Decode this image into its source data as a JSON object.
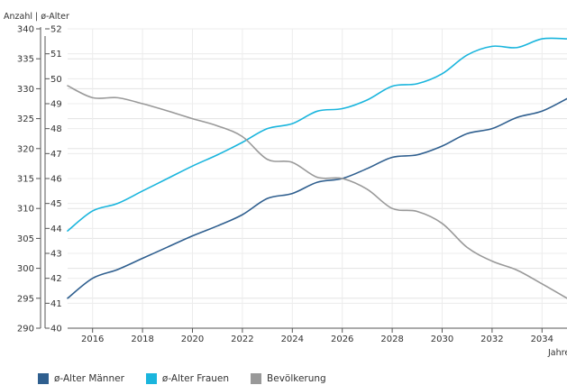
{
  "chart_data": {
    "type": "line",
    "y_axis_title": "Anzahl | ø-Alter",
    "x_axis_title": "Jahre",
    "x": [
      2015,
      2016,
      2017,
      2018,
      2019,
      2020,
      2021,
      2022,
      2023,
      2024,
      2025,
      2026,
      2027,
      2028,
      2029,
      2030,
      2031,
      2032,
      2033,
      2034,
      2035
    ],
    "xticks": [
      "2016",
      "2018",
      "2020",
      "2022",
      "2024",
      "2026",
      "2028",
      "2030",
      "2032",
      "2034"
    ],
    "xlim": [
      2015,
      2035
    ],
    "axes": {
      "count": {
        "ylim": [
          290,
          340
        ],
        "ticks": [
          "290",
          "295",
          "300",
          "305",
          "310",
          "315",
          "320",
          "325",
          "330",
          "335",
          "340"
        ]
      },
      "age": {
        "ylim": [
          40,
          52
        ],
        "ticks": [
          "40",
          "41",
          "42",
          "43",
          "44",
          "45",
          "46",
          "47",
          "48",
          "49",
          "50",
          "51",
          "52"
        ]
      }
    },
    "grid": true,
    "legend_position": "bottom-left",
    "series": [
      {
        "name": "ø-Alter Männer",
        "axis": "age",
        "color": "#2f5f8f",
        "values": [
          41.2,
          42.0,
          42.35,
          42.8,
          43.25,
          43.7,
          44.1,
          44.55,
          45.2,
          45.4,
          45.85,
          46.0,
          46.4,
          46.85,
          46.95,
          47.3,
          47.8,
          48.0,
          48.45,
          48.7,
          49.2
        ]
      },
      {
        "name": "ø-Alter Frauen",
        "axis": "age",
        "color": "#1ab5dd",
        "values": [
          43.9,
          44.7,
          45.0,
          45.5,
          46.0,
          46.5,
          46.95,
          47.45,
          48.0,
          48.2,
          48.7,
          48.8,
          49.15,
          49.7,
          49.8,
          50.2,
          50.95,
          51.3,
          51.25,
          51.6,
          51.6
        ]
      },
      {
        "name": "Bevölkerung",
        "axis": "count",
        "color": "#999999",
        "values": [
          330.5,
          328.5,
          328.5,
          327.5,
          326.3,
          325.0,
          323.8,
          322.0,
          318.2,
          317.7,
          315.2,
          315.0,
          313.2,
          310.0,
          309.5,
          307.5,
          303.5,
          301.2,
          299.7,
          297.4,
          295.0
        ]
      }
    ]
  }
}
